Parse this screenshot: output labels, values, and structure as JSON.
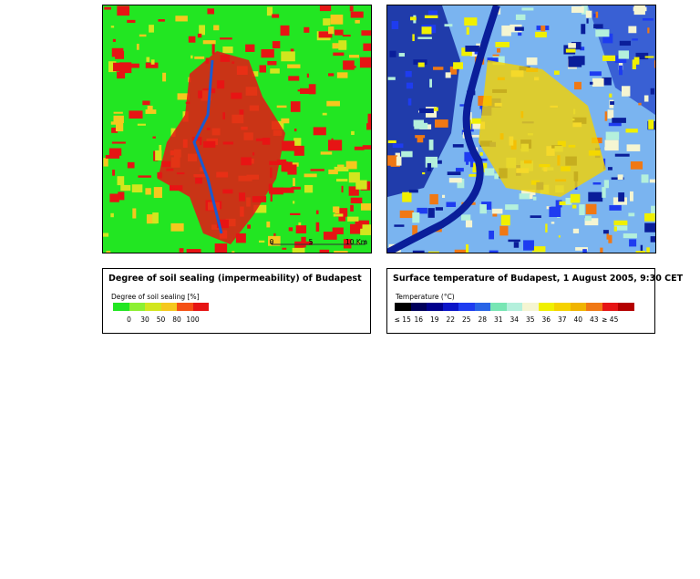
{
  "maps": [
    {
      "scale_labels": [
        "0",
        "5",
        "10 Km"
      ]
    }
  ],
  "legends": [
    {
      "title": "Degree of soil sealing (impermeability) of Budapest",
      "subtitle": "Degree of soil sealing [%]",
      "colors": [
        "#22e622",
        "#8cf032",
        "#d2e61e",
        "#f5c81e",
        "#f55014",
        "#e61414"
      ],
      "labels": [
        "0",
        "30",
        "50",
        "80",
        "100"
      ]
    },
    {
      "title": "Surface temperature of Budapest, 1 August 2005, 9:30 CET",
      "subtitle": "Temperature (°C)",
      "colors": [
        "#000000",
        "#00005a",
        "#00008c",
        "#0a14c8",
        "#1e3cf0",
        "#2864e6",
        "#78e6b4",
        "#b4f0dc",
        "#f5f5d2",
        "#f0f000",
        "#f5d200",
        "#f0b400",
        "#f07814",
        "#e61414",
        "#b40000"
      ],
      "labels": [
        "≤ 15",
        "16",
        "19",
        "22",
        "25",
        "28",
        "31",
        "34",
        "35",
        "36",
        "37",
        "40",
        "43",
        "≥ 45"
      ]
    }
  ]
}
